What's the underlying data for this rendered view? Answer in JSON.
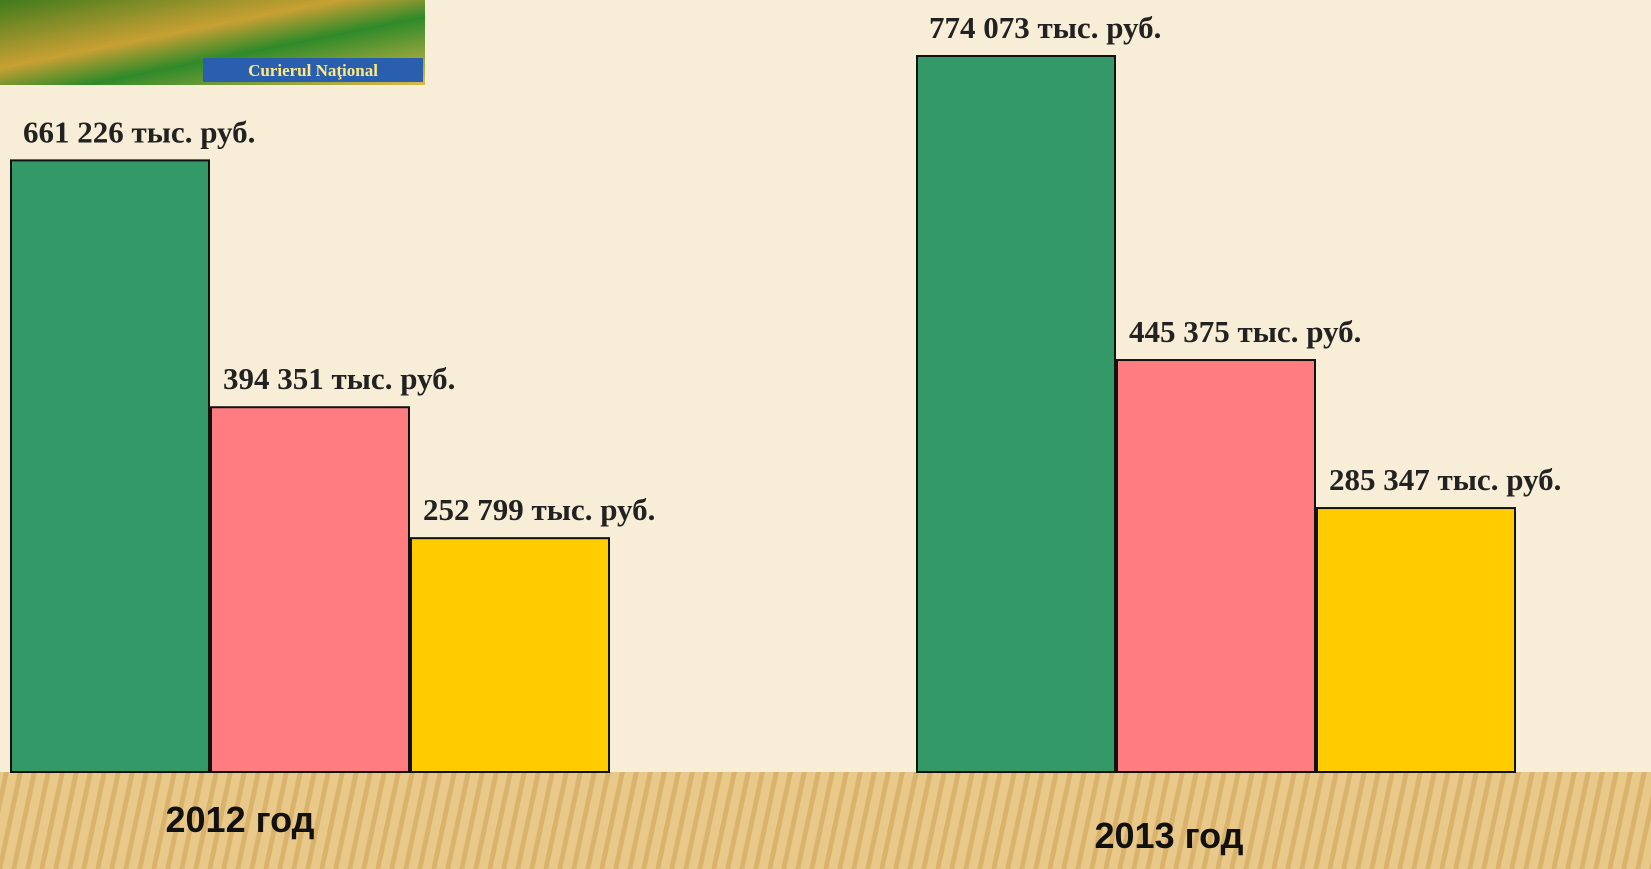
{
  "logo": {
    "text": "Curierul Naţional"
  },
  "chart_data": {
    "type": "bar",
    "categories": [
      "2012 год",
      "2013 год"
    ],
    "series": [
      {
        "color": "#339966",
        "values": [
          661226,
          774073
        ],
        "value_labels": [
          "661 226 тыс. руб.",
          "774 073 тыс. руб."
        ]
      },
      {
        "color": "#ff7c80",
        "values": [
          394351,
          445375
        ],
        "value_labels": [
          "394 351 тыс. руб.",
          "445 375 тыс. руб."
        ]
      },
      {
        "color": "#ffcc00",
        "values": [
          252799,
          285347
        ],
        "value_labels": [
          "252 799 тыс. руб.",
          "285 347 тыс. руб."
        ]
      }
    ]
  }
}
